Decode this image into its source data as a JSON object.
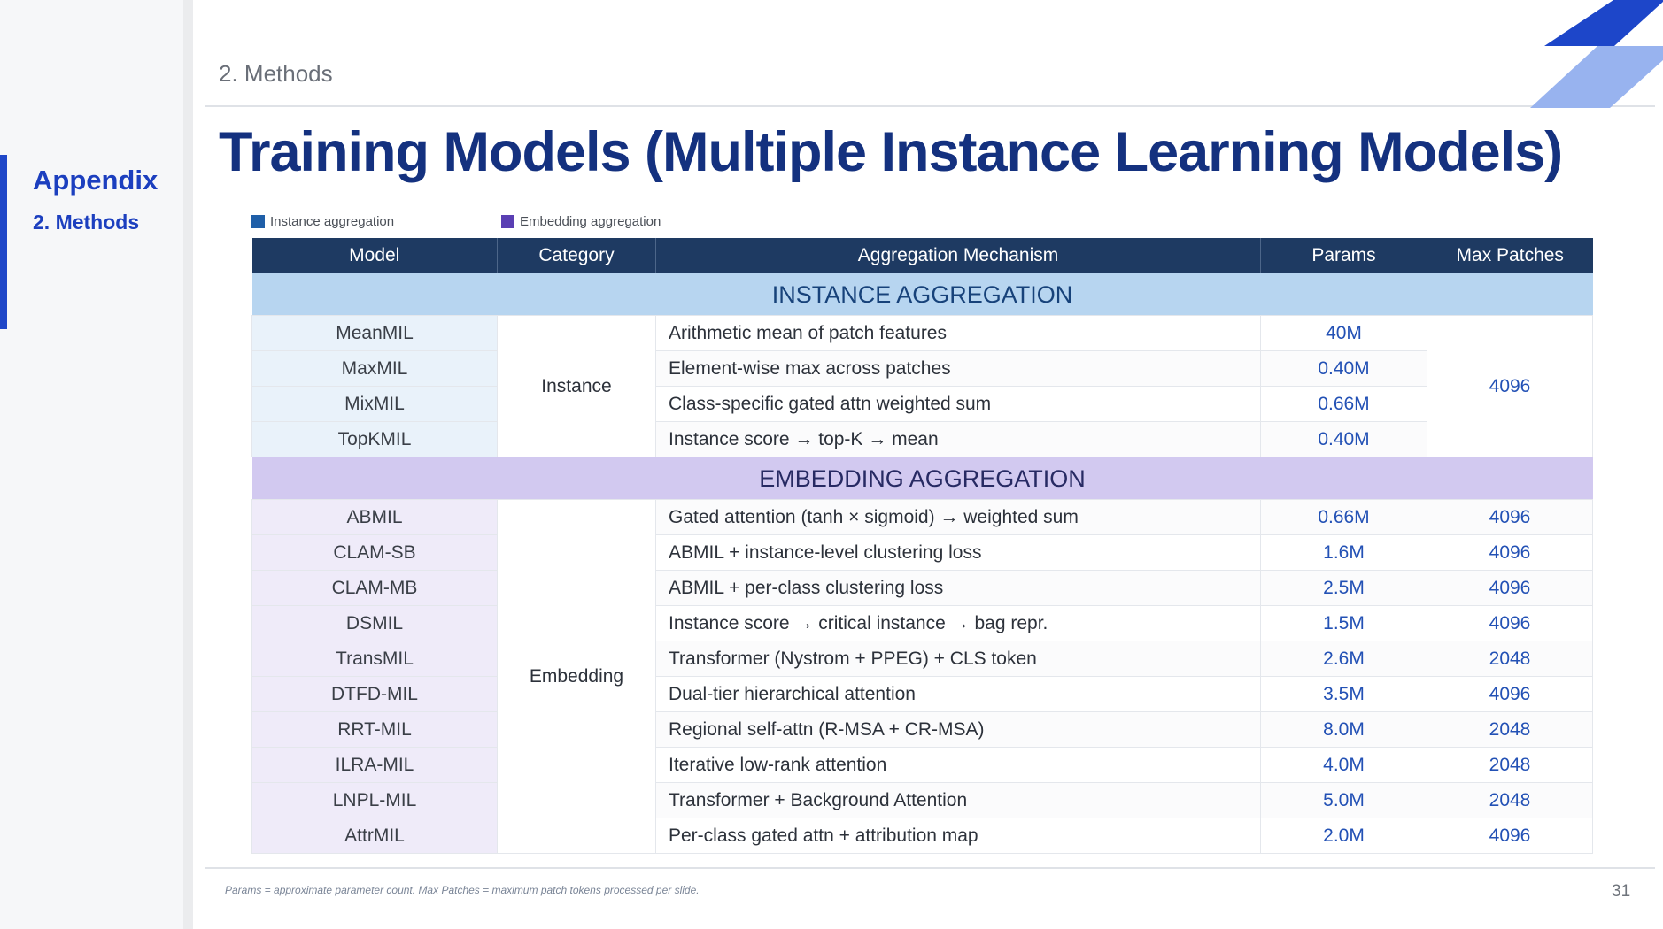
{
  "sidebar": {
    "title": "Appendix",
    "subtitle": "2. Methods"
  },
  "header": {
    "section": "2. Methods",
    "title": "Training Models (Multiple Instance Learning Models)"
  },
  "legend": [
    {
      "label": "Instance aggregation",
      "color": "#1f5fa8"
    },
    {
      "label": "Embedding aggregation",
      "color": "#5a3fb3"
    }
  ],
  "table": {
    "columns": [
      "Model",
      "Category",
      "Aggregation Mechanism",
      "Params",
      "Max Patches"
    ],
    "instance_group": {
      "banner": "INSTANCE AGGREGATION",
      "category": "Instance",
      "max_patches": "4096",
      "rows": [
        {
          "model": "MeanMIL",
          "mechanism": "Arithmetic mean of patch features",
          "params": "40M"
        },
        {
          "model": "MaxMIL",
          "mechanism": "Element-wise max across patches",
          "params": "0.40M"
        },
        {
          "model": "MixMIL",
          "mechanism": "Class-specific gated attn weighted sum",
          "params": "0.66M"
        },
        {
          "model": "TopKMIL",
          "mechanism": "Instance score → top-K → mean",
          "params": "0.40M"
        }
      ]
    },
    "embedding_group": {
      "banner": "EMBEDDING AGGREGATION",
      "category": "Embedding",
      "rows": [
        {
          "model": "ABMIL",
          "mechanism": "Gated attention (tanh × sigmoid) → weighted sum",
          "params": "0.66M",
          "max_patches": "4096"
        },
        {
          "model": "CLAM-SB",
          "mechanism": "ABMIL + instance-level clustering loss",
          "params": "1.6M",
          "max_patches": "4096"
        },
        {
          "model": "CLAM-MB",
          "mechanism": "ABMIL + per-class clustering loss",
          "params": "2.5M",
          "max_patches": "4096"
        },
        {
          "model": "DSMIL",
          "mechanism": "Instance score → critical instance → bag repr.",
          "params": "1.5M",
          "max_patches": "4096"
        },
        {
          "model": "TransMIL",
          "mechanism": "Transformer (Nystrom + PPEG) + CLS token",
          "params": "2.6M",
          "max_patches": "2048"
        },
        {
          "model": "DTFD-MIL",
          "mechanism": "Dual-tier hierarchical attention",
          "params": "3.5M",
          "max_patches": "4096"
        },
        {
          "model": "RRT-MIL",
          "mechanism": "Regional self-attn (R-MSA + CR-MSA)",
          "params": "8.0M",
          "max_patches": "2048"
        },
        {
          "model": "ILRA-MIL",
          "mechanism": "Iterative low-rank attention",
          "params": "4.0M",
          "max_patches": "2048"
        },
        {
          "model": "LNPL-MIL",
          "mechanism": "Transformer + Background Attention",
          "params": "5.0M",
          "max_patches": "2048"
        },
        {
          "model": "AttrMIL",
          "mechanism": "Per-class gated attn + attribution map",
          "params": "2.0M",
          "max_patches": "4096"
        }
      ]
    }
  },
  "footer": {
    "note": "Params = approximate parameter count. Max Patches = maximum patch tokens processed per slide.",
    "page": "31"
  }
}
